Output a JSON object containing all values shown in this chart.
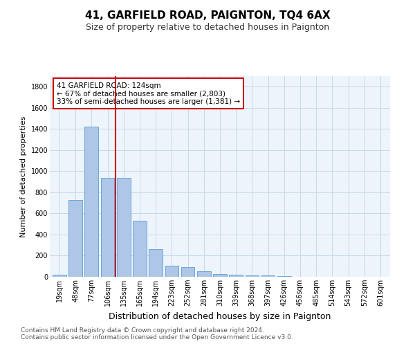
{
  "title": "41, GARFIELD ROAD, PAIGNTON, TQ4 6AX",
  "subtitle": "Size of property relative to detached houses in Paignton",
  "xlabel": "Distribution of detached houses by size in Paignton",
  "ylabel": "Number of detached properties",
  "footer_line1": "Contains HM Land Registry data © Crown copyright and database right 2024.",
  "footer_line2": "Contains public sector information licensed under the Open Government Licence v3.0.",
  "bar_labels": [
    "19sqm",
    "48sqm",
    "77sqm",
    "106sqm",
    "135sqm",
    "165sqm",
    "194sqm",
    "223sqm",
    "252sqm",
    "281sqm",
    "310sqm",
    "339sqm",
    "368sqm",
    "397sqm",
    "426sqm",
    "456sqm",
    "485sqm",
    "514sqm",
    "543sqm",
    "572sqm",
    "601sqm"
  ],
  "bar_values": [
    20,
    730,
    1420,
    940,
    940,
    530,
    265,
    108,
    90,
    50,
    25,
    18,
    15,
    12,
    5,
    3,
    3,
    2,
    2,
    2,
    2
  ],
  "bar_color": "#aec6e8",
  "bar_edge_color": "#5a9fd4",
  "property_line_x": 3.5,
  "annotation_text": "41 GARFIELD ROAD: 124sqm\n← 67% of detached houses are smaller (2,803)\n33% of semi-detached houses are larger (1,381) →",
  "annotation_box_color": "#ffffff",
  "annotation_edge_color": "#cc0000",
  "vline_color": "#cc0000",
  "ylim": [
    0,
    1900
  ],
  "yticks": [
    0,
    200,
    400,
    600,
    800,
    1000,
    1200,
    1400,
    1600,
    1800
  ],
  "grid_color": "#c8d8e8",
  "bg_color": "#eef4fb",
  "title_fontsize": 11,
  "subtitle_fontsize": 9,
  "xlabel_fontsize": 9,
  "ylabel_fontsize": 8,
  "tick_fontsize": 7,
  "annotation_fontsize": 7.5,
  "footer_fontsize": 6.5
}
